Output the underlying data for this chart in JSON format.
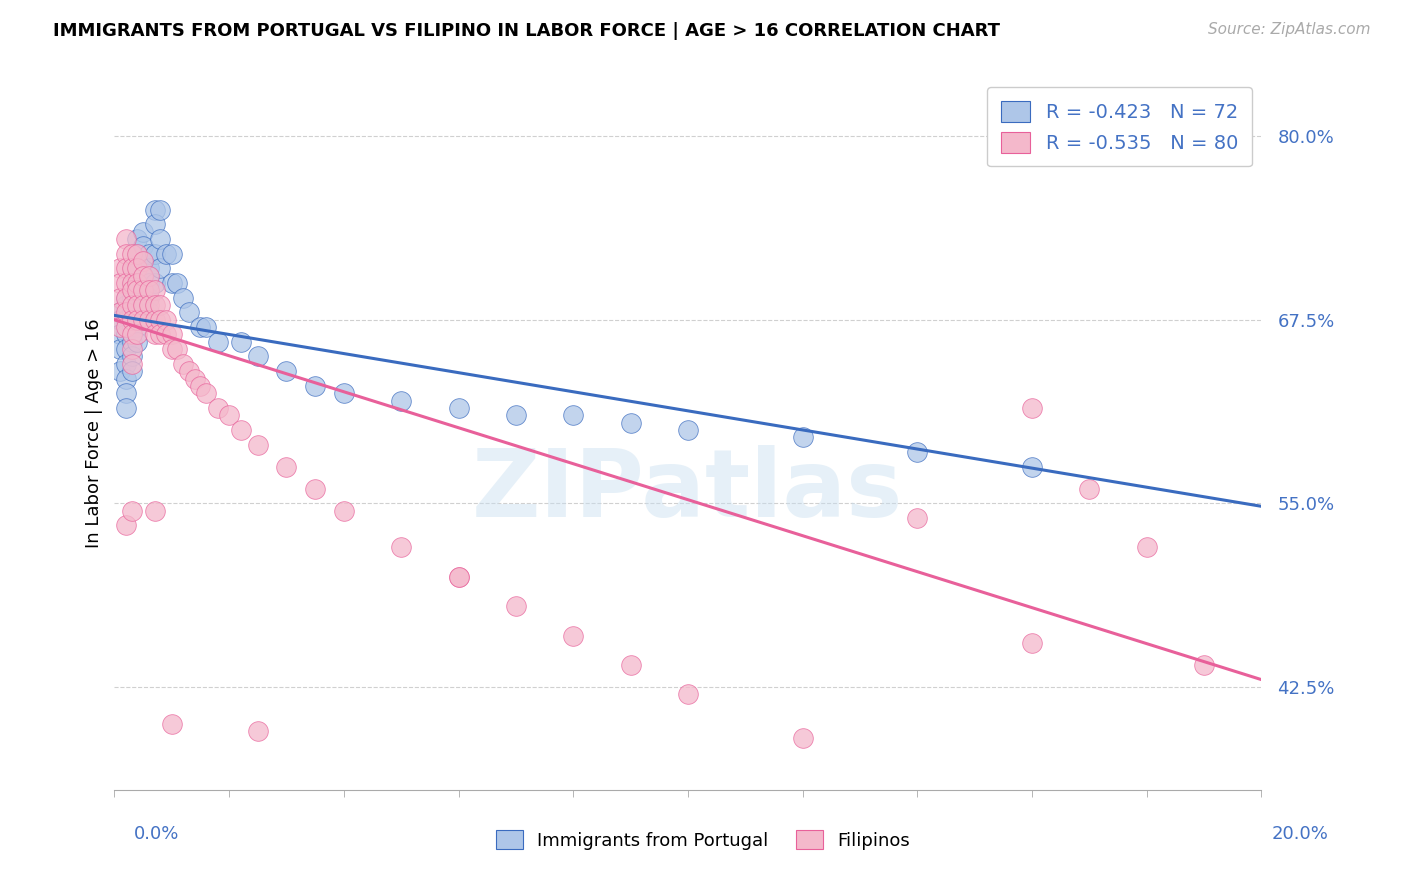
{
  "title": "IMMIGRANTS FROM PORTUGAL VS FILIPINO IN LABOR FORCE | AGE > 16 CORRELATION CHART",
  "source": "Source: ZipAtlas.com",
  "ylabel": "In Labor Force | Age > 16",
  "ytick_vals": [
    0.425,
    0.55,
    0.675,
    0.8
  ],
  "xlim": [
    0.0,
    0.2
  ],
  "ylim": [
    0.355,
    0.84
  ],
  "legend_label1": "Immigrants from Portugal",
  "legend_label2": "Filipinos",
  "R1": -0.423,
  "N1": 72,
  "R2": -0.535,
  "N2": 80,
  "color_blue": "#aec6e8",
  "color_pink": "#f4b8cb",
  "line_color_blue": "#3a6bbf",
  "line_color_pink": "#e8609a",
  "text_color": "#4472c4",
  "watermark": "ZIPatlas",
  "background_color": "#ffffff",
  "grid_color": "#d0d0d0",
  "blue_line_x0": 0.0,
  "blue_line_y0": 0.678,
  "blue_line_x1": 0.2,
  "blue_line_y1": 0.548,
  "pink_line_x0": 0.0,
  "pink_line_y0": 0.675,
  "pink_line_x1": 0.2,
  "pink_line_y1": 0.43,
  "portugal_x": [
    0.001,
    0.001,
    0.001,
    0.001,
    0.001,
    0.002,
    0.002,
    0.002,
    0.002,
    0.002,
    0.002,
    0.002,
    0.002,
    0.002,
    0.003,
    0.003,
    0.003,
    0.003,
    0.003,
    0.003,
    0.003,
    0.003,
    0.004,
    0.004,
    0.004,
    0.004,
    0.004,
    0.004,
    0.004,
    0.004,
    0.005,
    0.005,
    0.005,
    0.005,
    0.005,
    0.005,
    0.005,
    0.006,
    0.006,
    0.006,
    0.006,
    0.006,
    0.007,
    0.007,
    0.007,
    0.007,
    0.008,
    0.008,
    0.008,
    0.009,
    0.01,
    0.01,
    0.011,
    0.012,
    0.013,
    0.015,
    0.016,
    0.018,
    0.022,
    0.025,
    0.03,
    0.035,
    0.04,
    0.05,
    0.06,
    0.07,
    0.08,
    0.09,
    0.1,
    0.12,
    0.14,
    0.16
  ],
  "portugal_y": [
    0.68,
    0.675,
    0.665,
    0.655,
    0.64,
    0.69,
    0.685,
    0.675,
    0.665,
    0.655,
    0.645,
    0.635,
    0.625,
    0.615,
    0.71,
    0.7,
    0.69,
    0.68,
    0.67,
    0.66,
    0.65,
    0.64,
    0.73,
    0.72,
    0.71,
    0.7,
    0.69,
    0.68,
    0.67,
    0.66,
    0.735,
    0.725,
    0.715,
    0.705,
    0.695,
    0.685,
    0.675,
    0.72,
    0.71,
    0.7,
    0.69,
    0.68,
    0.75,
    0.74,
    0.72,
    0.7,
    0.75,
    0.73,
    0.71,
    0.72,
    0.72,
    0.7,
    0.7,
    0.69,
    0.68,
    0.67,
    0.67,
    0.66,
    0.66,
    0.65,
    0.64,
    0.63,
    0.625,
    0.62,
    0.615,
    0.61,
    0.61,
    0.605,
    0.6,
    0.595,
    0.585,
    0.575
  ],
  "filipino_x": [
    0.001,
    0.001,
    0.001,
    0.001,
    0.001,
    0.002,
    0.002,
    0.002,
    0.002,
    0.002,
    0.002,
    0.002,
    0.003,
    0.003,
    0.003,
    0.003,
    0.003,
    0.003,
    0.003,
    0.003,
    0.003,
    0.004,
    0.004,
    0.004,
    0.004,
    0.004,
    0.004,
    0.004,
    0.005,
    0.005,
    0.005,
    0.005,
    0.005,
    0.006,
    0.006,
    0.006,
    0.006,
    0.007,
    0.007,
    0.007,
    0.007,
    0.008,
    0.008,
    0.008,
    0.009,
    0.009,
    0.01,
    0.01,
    0.011,
    0.012,
    0.013,
    0.014,
    0.015,
    0.016,
    0.018,
    0.02,
    0.022,
    0.025,
    0.03,
    0.035,
    0.04,
    0.05,
    0.06,
    0.07,
    0.08,
    0.09,
    0.1,
    0.12,
    0.14,
    0.16,
    0.17,
    0.18,
    0.19,
    0.002,
    0.003,
    0.007,
    0.01,
    0.025,
    0.06,
    0.16
  ],
  "filipino_y": [
    0.71,
    0.7,
    0.69,
    0.68,
    0.67,
    0.73,
    0.72,
    0.71,
    0.7,
    0.69,
    0.68,
    0.67,
    0.72,
    0.71,
    0.7,
    0.695,
    0.685,
    0.675,
    0.665,
    0.655,
    0.645,
    0.72,
    0.71,
    0.7,
    0.695,
    0.685,
    0.675,
    0.665,
    0.715,
    0.705,
    0.695,
    0.685,
    0.675,
    0.705,
    0.695,
    0.685,
    0.675,
    0.695,
    0.685,
    0.675,
    0.665,
    0.685,
    0.675,
    0.665,
    0.675,
    0.665,
    0.665,
    0.655,
    0.655,
    0.645,
    0.64,
    0.635,
    0.63,
    0.625,
    0.615,
    0.61,
    0.6,
    0.59,
    0.575,
    0.56,
    0.545,
    0.52,
    0.5,
    0.48,
    0.46,
    0.44,
    0.42,
    0.39,
    0.54,
    0.615,
    0.56,
    0.52,
    0.44,
    0.535,
    0.545,
    0.545,
    0.4,
    0.395,
    0.5,
    0.455
  ]
}
